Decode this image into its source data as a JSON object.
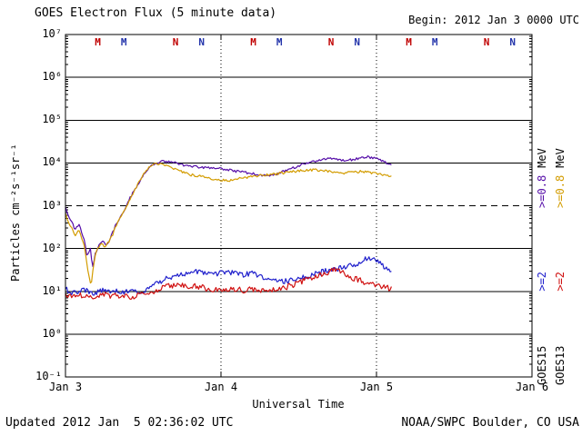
{
  "header": {
    "title": "GOES Electron Flux (5 minute data)",
    "begin": "Begin: 2012 Jan 3 0000 UTC"
  },
  "footer": {
    "updated": "Updated 2012 Jan  5 02:36:02 UTC",
    "source": "NOAA/SWPC Boulder, CO USA"
  },
  "axes": {
    "ylabel": "Particles cm⁻²s⁻¹sr⁻¹",
    "xlabel": "Universal Time"
  },
  "right_legend": [
    {
      "satellite": "GOES15",
      "e2_label": ">=2",
      "e2_color": "#2020cc",
      "e08_label": ">=0.8",
      "e08_color": "#550da8",
      "mev": "MeV"
    },
    {
      "satellite": "GOES13",
      "e2_label": ">=2",
      "e2_color": "#d01010",
      "e08_label": ">=0.8",
      "e08_color": "#d39c00",
      "mev": "MeV"
    }
  ],
  "chart_data": {
    "type": "line",
    "title": "GOES Electron Flux (5 minute data)",
    "xlabel": "Universal Time",
    "ylabel": "Particles cm^-2 s^-1 sr^-1 (log scale)",
    "x_unit": "days since 2012 Jan 3 0000 UTC",
    "x_range": [
      0,
      3
    ],
    "x_ticks": [
      {
        "t": 0,
        "label": "Jan 3"
      },
      {
        "t": 1,
        "label": "Jan 4"
      },
      {
        "t": 2,
        "label": "Jan 5"
      },
      {
        "t": 3,
        "label": "Jan 6"
      }
    ],
    "x_dotted_lines": [
      1,
      2
    ],
    "y_log_range": [
      -1,
      7
    ],
    "y_ticks": [
      {
        "e": 7,
        "label": "10⁷"
      },
      {
        "e": 6,
        "label": "10⁶"
      },
      {
        "e": 5,
        "label": "10⁵"
      },
      {
        "e": 4,
        "label": "10⁴"
      },
      {
        "e": 3,
        "label": "10³"
      },
      {
        "e": 2,
        "label": "10²"
      },
      {
        "e": 1,
        "label": "10¹"
      },
      {
        "e": 0,
        "label": "10⁰"
      },
      {
        "e": -1,
        "label": "10⁻¹"
      }
    ],
    "threshold_line_log": 3,
    "grid": true,
    "legend_position": "right",
    "top_markers": [
      {
        "t": 0.208,
        "label": "M",
        "color": "#c00000"
      },
      {
        "t": 0.375,
        "label": "M",
        "color": "#2233aa"
      },
      {
        "t": 0.708,
        "label": "N",
        "color": "#c00000"
      },
      {
        "t": 0.875,
        "label": "N",
        "color": "#2233aa"
      },
      {
        "t": 1.208,
        "label": "M",
        "color": "#c00000"
      },
      {
        "t": 1.375,
        "label": "M",
        "color": "#2233aa"
      },
      {
        "t": 1.708,
        "label": "N",
        "color": "#c00000"
      },
      {
        "t": 1.875,
        "label": "N",
        "color": "#2233aa"
      },
      {
        "t": 2.208,
        "label": "M",
        "color": "#c00000"
      },
      {
        "t": 2.375,
        "label": "M",
        "color": "#2233aa"
      },
      {
        "t": 2.708,
        "label": "N",
        "color": "#c00000"
      },
      {
        "t": 2.875,
        "label": "N",
        "color": "#2233aa"
      }
    ],
    "series": [
      {
        "name": "GOES15 >=0.8 MeV",
        "color": "#550da8",
        "noise": 0.03,
        "seed": 11,
        "points": [
          [
            0,
            2.95
          ],
          [
            0.03,
            2.7
          ],
          [
            0.06,
            2.45
          ],
          [
            0.09,
            2.55
          ],
          [
            0.12,
            2.2
          ],
          [
            0.14,
            1.8
          ],
          [
            0.16,
            2.0
          ],
          [
            0.175,
            1.55
          ],
          [
            0.19,
            1.85
          ],
          [
            0.21,
            2.05
          ],
          [
            0.24,
            2.15
          ],
          [
            0.27,
            2.1
          ],
          [
            0.3,
            2.35
          ],
          [
            0.33,
            2.6
          ],
          [
            0.37,
            2.85
          ],
          [
            0.41,
            3.15
          ],
          [
            0.45,
            3.4
          ],
          [
            0.49,
            3.65
          ],
          [
            0.53,
            3.85
          ],
          [
            0.57,
            3.98
          ],
          [
            0.62,
            4.04
          ],
          [
            0.68,
            4.03
          ],
          [
            0.74,
            3.97
          ],
          [
            0.8,
            3.92
          ],
          [
            0.86,
            3.9
          ],
          [
            0.92,
            3.88
          ],
          [
            0.98,
            3.87
          ],
          [
            1.04,
            3.84
          ],
          [
            1.1,
            3.8
          ],
          [
            1.16,
            3.77
          ],
          [
            1.22,
            3.74
          ],
          [
            1.28,
            3.7
          ],
          [
            1.34,
            3.72
          ],
          [
            1.4,
            3.8
          ],
          [
            1.46,
            3.88
          ],
          [
            1.52,
            3.96
          ],
          [
            1.58,
            4.02
          ],
          [
            1.64,
            4.07
          ],
          [
            1.7,
            4.1
          ],
          [
            1.76,
            4.08
          ],
          [
            1.82,
            4.06
          ],
          [
            1.88,
            4.1
          ],
          [
            1.94,
            4.14
          ],
          [
            2.0,
            4.11
          ],
          [
            2.05,
            4.03
          ],
          [
            2.1,
            3.95
          ]
        ]
      },
      {
        "name": "GOES13 >=0.8 MeV",
        "color": "#d39c00",
        "noise": 0.03,
        "seed": 23,
        "points": [
          [
            0,
            2.8
          ],
          [
            0.03,
            2.55
          ],
          [
            0.06,
            2.3
          ],
          [
            0.09,
            2.45
          ],
          [
            0.12,
            2.05
          ],
          [
            0.14,
            1.6
          ],
          [
            0.155,
            1.25
          ],
          [
            0.165,
            1.1
          ],
          [
            0.18,
            1.6
          ],
          [
            0.2,
            1.95
          ],
          [
            0.23,
            2.1
          ],
          [
            0.26,
            2.05
          ],
          [
            0.3,
            2.3
          ],
          [
            0.33,
            2.57
          ],
          [
            0.37,
            2.82
          ],
          [
            0.41,
            3.12
          ],
          [
            0.45,
            3.4
          ],
          [
            0.49,
            3.67
          ],
          [
            0.53,
            3.87
          ],
          [
            0.57,
            3.97
          ],
          [
            0.61,
            3.99
          ],
          [
            0.66,
            3.93
          ],
          [
            0.71,
            3.85
          ],
          [
            0.76,
            3.77
          ],
          [
            0.81,
            3.72
          ],
          [
            0.86,
            3.69
          ],
          [
            0.91,
            3.65
          ],
          [
            0.96,
            3.62
          ],
          [
            1.01,
            3.6
          ],
          [
            1.06,
            3.59
          ],
          [
            1.12,
            3.63
          ],
          [
            1.18,
            3.67
          ],
          [
            1.24,
            3.7
          ],
          [
            1.3,
            3.72
          ],
          [
            1.36,
            3.75
          ],
          [
            1.42,
            3.78
          ],
          [
            1.48,
            3.8
          ],
          [
            1.54,
            3.83
          ],
          [
            1.6,
            3.84
          ],
          [
            1.66,
            3.82
          ],
          [
            1.72,
            3.8
          ],
          [
            1.78,
            3.76
          ],
          [
            1.84,
            3.78
          ],
          [
            1.9,
            3.8
          ],
          [
            1.96,
            3.77
          ],
          [
            2.02,
            3.73
          ],
          [
            2.1,
            3.68
          ]
        ]
      },
      {
        "name": "GOES15 >=2 MeV",
        "color": "#2020cc",
        "noise": 0.065,
        "seed": 37,
        "points": [
          [
            0,
            1.05
          ],
          [
            0.06,
            0.95
          ],
          [
            0.12,
            1.02
          ],
          [
            0.18,
            0.96
          ],
          [
            0.24,
            1.03
          ],
          [
            0.3,
            1.0
          ],
          [
            0.36,
            0.98
          ],
          [
            0.42,
            1.03
          ],
          [
            0.48,
            1.0
          ],
          [
            0.54,
            1.08
          ],
          [
            0.6,
            1.2
          ],
          [
            0.66,
            1.32
          ],
          [
            0.72,
            1.4
          ],
          [
            0.78,
            1.43
          ],
          [
            0.84,
            1.45
          ],
          [
            0.9,
            1.42
          ],
          [
            0.96,
            1.4
          ],
          [
            1.02,
            1.44
          ],
          [
            1.08,
            1.43
          ],
          [
            1.14,
            1.39
          ],
          [
            1.2,
            1.42
          ],
          [
            1.26,
            1.35
          ],
          [
            1.32,
            1.29
          ],
          [
            1.38,
            1.24
          ],
          [
            1.44,
            1.24
          ],
          [
            1.5,
            1.3
          ],
          [
            1.56,
            1.36
          ],
          [
            1.62,
            1.42
          ],
          [
            1.68,
            1.48
          ],
          [
            1.74,
            1.53
          ],
          [
            1.8,
            1.56
          ],
          [
            1.86,
            1.62
          ],
          [
            1.9,
            1.7
          ],
          [
            1.94,
            1.77
          ],
          [
            1.98,
            1.74
          ],
          [
            2.02,
            1.65
          ],
          [
            2.06,
            1.55
          ],
          [
            2.1,
            1.47
          ]
        ]
      },
      {
        "name": "GOES13 >=2 MeV",
        "color": "#d01010",
        "noise": 0.065,
        "seed": 53,
        "points": [
          [
            0,
            0.93
          ],
          [
            0.06,
            0.88
          ],
          [
            0.12,
            0.92
          ],
          [
            0.18,
            0.86
          ],
          [
            0.24,
            0.92
          ],
          [
            0.3,
            0.89
          ],
          [
            0.36,
            0.91
          ],
          [
            0.42,
            0.88
          ],
          [
            0.48,
            0.91
          ],
          [
            0.54,
            0.96
          ],
          [
            0.6,
            1.05
          ],
          [
            0.66,
            1.12
          ],
          [
            0.72,
            1.15
          ],
          [
            0.78,
            1.11
          ],
          [
            0.84,
            1.12
          ],
          [
            0.9,
            1.07
          ],
          [
            0.96,
            1.03
          ],
          [
            1.02,
            1.02
          ],
          [
            1.08,
            1.06
          ],
          [
            1.14,
            1.02
          ],
          [
            1.2,
            1.05
          ],
          [
            1.26,
            1.02
          ],
          [
            1.32,
            1.01
          ],
          [
            1.38,
            1.06
          ],
          [
            1.44,
            1.12
          ],
          [
            1.5,
            1.2
          ],
          [
            1.56,
            1.29
          ],
          [
            1.62,
            1.37
          ],
          [
            1.68,
            1.44
          ],
          [
            1.73,
            1.49
          ],
          [
            1.77,
            1.46
          ],
          [
            1.81,
            1.37
          ],
          [
            1.85,
            1.31
          ],
          [
            1.89,
            1.26
          ],
          [
            1.93,
            1.21
          ],
          [
            1.97,
            1.17
          ],
          [
            2.02,
            1.12
          ],
          [
            2.1,
            1.06
          ]
        ]
      }
    ]
  }
}
